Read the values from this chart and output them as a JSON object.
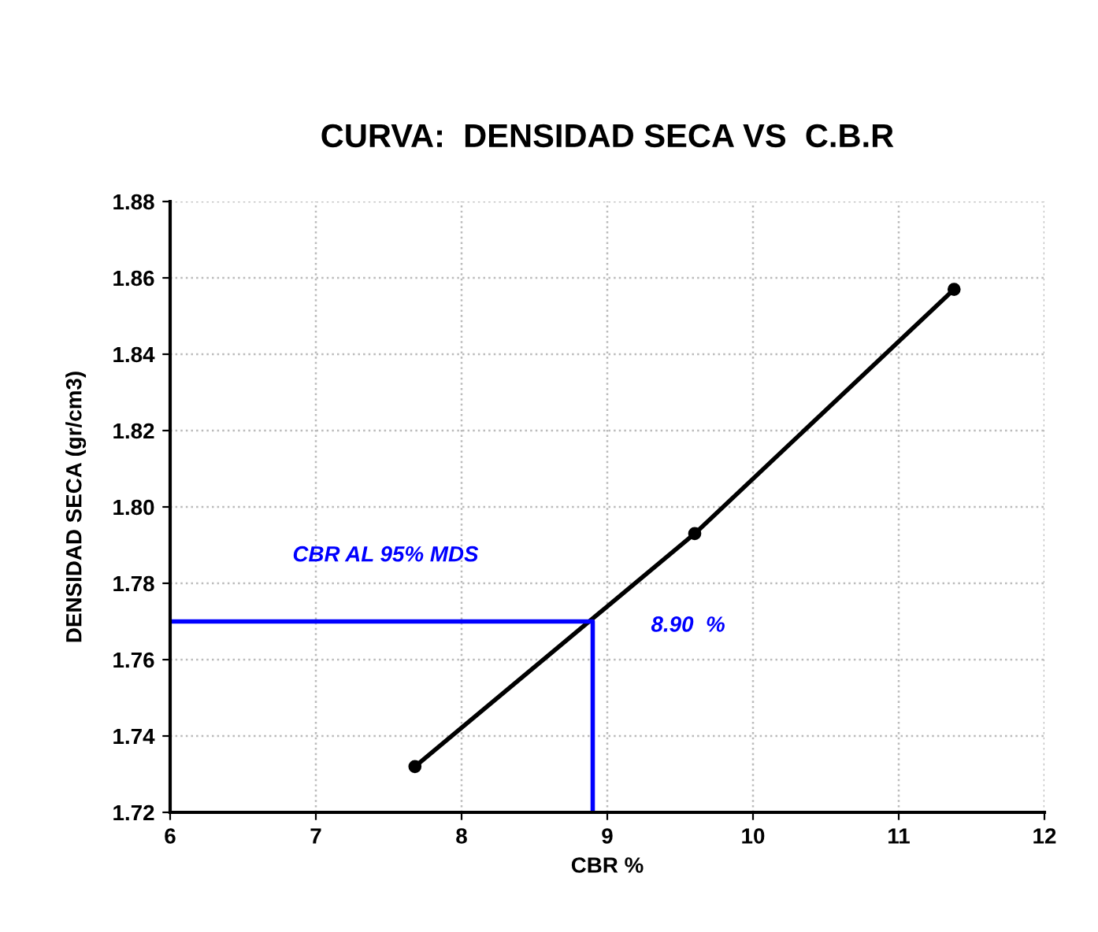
{
  "chart_data": {
    "type": "line",
    "title": "CURVA:  DENSIDAD SECA VS  C.B.R",
    "xlabel": "CBR %",
    "ylabel": "DENSIDAD SECA (gr/cm3)",
    "series": [
      {
        "x": [
          7.68,
          9.6,
          11.38
        ],
        "values": [
          1.732,
          1.793,
          1.857
        ],
        "color": "#000000",
        "marker": "circle"
      },
      {
        "x": [
          6,
          8.9,
          8.9
        ],
        "values": [
          1.77,
          1.77,
          1.72
        ],
        "color": "#0000ff",
        "marker": "none"
      }
    ],
    "annotations": [
      "CBR AL 95% MDS",
      "8.90  %"
    ],
    "xlim": [
      6,
      12
    ],
    "xticks": [
      6,
      7,
      8,
      9,
      10,
      11,
      12
    ],
    "ylim": [
      1.72,
      1.88
    ],
    "yticks": [
      {
        "value": 1.72,
        "label": "1.72"
      },
      {
        "value": 1.74,
        "label": "1.74"
      },
      {
        "value": 1.76,
        "label": "1.76"
      },
      {
        "value": 1.78,
        "label": "1.78"
      },
      {
        "value": 1.8,
        "label": "1.80"
      },
      {
        "value": 1.82,
        "label": "1.82"
      },
      {
        "value": 1.84,
        "label": "1.84"
      },
      {
        "value": 1.86,
        "label": "1.86"
      },
      {
        "value": 1.88,
        "label": "1.88"
      }
    ],
    "grid": true,
    "legend": false
  }
}
